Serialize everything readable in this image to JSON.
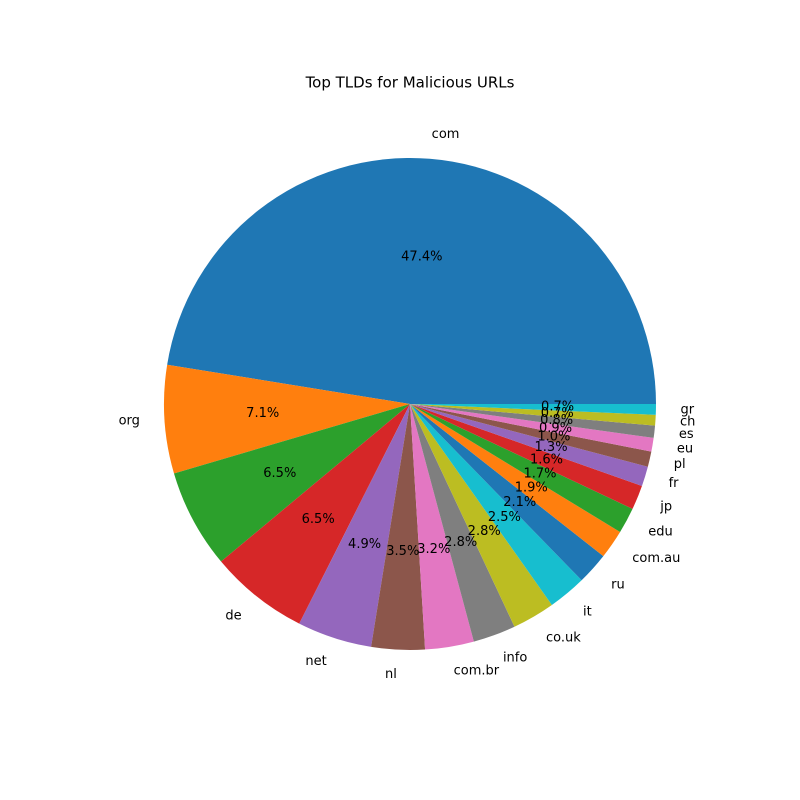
{
  "chart_data": {
    "type": "pie",
    "title": "Top TLDs for Malicious URLs",
    "categories": [
      "com",
      "org",
      null,
      "de",
      "net",
      "nl",
      "com.br",
      "info",
      "co.uk",
      "it",
      "ru",
      "com.au",
      "edu",
      "jp",
      "fr",
      "pl",
      "eu",
      "es",
      "ch",
      "gr"
    ],
    "values": [
      47.4,
      7.1,
      6.5,
      6.5,
      4.9,
      3.5,
      3.2,
      2.8,
      2.8,
      2.5,
      2.1,
      1.9,
      1.7,
      1.6,
      1.3,
      1.0,
      0.9,
      0.8,
      0.7,
      0.7
    ],
    "value_labels": [
      "47.4%",
      "7.1%",
      "6.5%",
      "6.5%",
      "4.9%",
      "3.5%",
      "3.2%",
      "2.8%",
      "2.8%",
      "2.5%",
      "2.1%",
      "1.9%",
      "1.7%",
      "1.6%",
      "1.3%",
      "1.0%",
      "0.9%",
      "0.8%",
      "0.7%",
      "0.7%"
    ],
    "colors": [
      "#1f77b4",
      "#ff7f0e",
      "#2ca02c",
      "#d62728",
      "#9467bd",
      "#8c564b",
      "#e377c2",
      "#7f7f7f",
      "#bcbd22",
      "#17becf"
    ]
  }
}
